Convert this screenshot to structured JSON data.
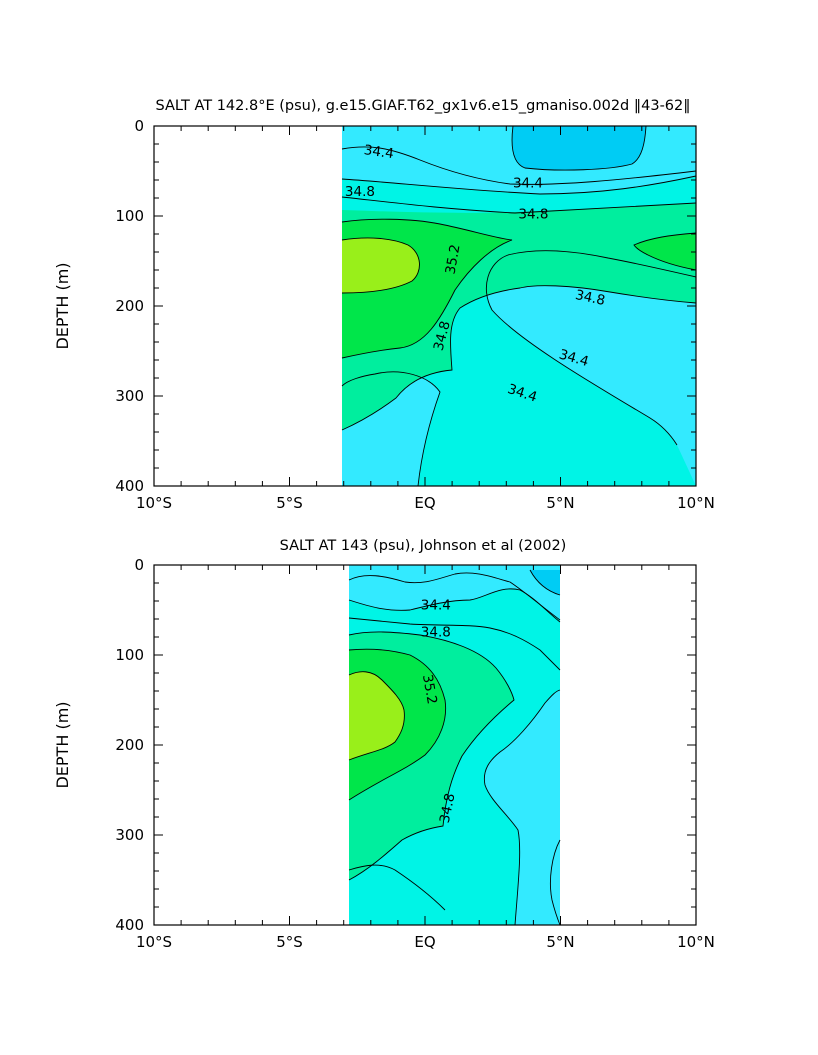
{
  "chart_data": [
    {
      "type": "heatmap",
      "subtype": "filled-contour",
      "title": "SALT AT 142.8°E (psu), g.e15.GIAF.T62_gx1v6.e15_gmaniso.002d ‖43-62‖",
      "ylabel": "DEPTH (m)",
      "xlabel": "",
      "x_tick_labels": [
        "10°S",
        "5°S",
        "EQ",
        "5°N",
        "10°N"
      ],
      "x_ticks": [
        -10,
        -5,
        0,
        5,
        10
      ],
      "y_tick_labels": [
        "0",
        "100",
        "200",
        "300",
        "400"
      ],
      "y_ticks": [
        0,
        100,
        200,
        300,
        400
      ],
      "xlim": [
        -10,
        10
      ],
      "ylim": [
        400,
        0
      ],
      "data_extent_lat": [
        -3,
        10
      ],
      "contour_labels": [
        {
          "text": "34.4",
          "lat": -1.7,
          "depth": 28,
          "rotate": 8
        },
        {
          "text": "34.4",
          "lat": 3.8,
          "depth": 63,
          "rotate": 0
        },
        {
          "text": "34.8",
          "lat": -2.4,
          "depth": 72,
          "rotate": 0
        },
        {
          "text": "34.8",
          "lat": 4.0,
          "depth": 97,
          "rotate": 0
        },
        {
          "text": "35.2",
          "lat": 1.0,
          "depth": 148,
          "rotate": -80
        },
        {
          "text": "34.8",
          "lat": 6.1,
          "depth": 190,
          "rotate": 12
        },
        {
          "text": "34.8",
          "lat": 0.6,
          "depth": 233,
          "rotate": -75
        },
        {
          "text": "34.4",
          "lat": 5.5,
          "depth": 257,
          "rotate": 16
        },
        {
          "text": "34.4",
          "lat": 3.6,
          "depth": 296,
          "rotate": 18
        }
      ],
      "colors": {
        "lowest": "#00ccf4",
        "low": "#33eaff",
        "mid_low": "#00f4e6",
        "mid": "#00ee9e",
        "high": "#00e64a",
        "highest": "#99ef1a"
      }
    },
    {
      "type": "heatmap",
      "subtype": "filled-contour",
      "title": "SALT AT 143 (psu), Johnson et al (2002)",
      "ylabel": "DEPTH (m)",
      "xlabel": "",
      "x_tick_labels": [
        "10°S",
        "5°S",
        "EQ",
        "5°N",
        "10°N"
      ],
      "x_ticks": [
        -10,
        -5,
        0,
        5,
        10
      ],
      "y_tick_labels": [
        "0",
        "100",
        "200",
        "300",
        "400"
      ],
      "y_ticks": [
        0,
        100,
        200,
        300,
        400
      ],
      "xlim": [
        -10,
        10
      ],
      "ylim": [
        400,
        0
      ],
      "data_extent_lat": [
        -2.75,
        5
      ],
      "contour_labels": [
        {
          "text": "34.4",
          "lat": 0.4,
          "depth": 44,
          "rotate": 0
        },
        {
          "text": "34.8",
          "lat": 0.4,
          "depth": 74,
          "rotate": 0
        },
        {
          "text": "35.2",
          "lat": 0.2,
          "depth": 138,
          "rotate": 80
        },
        {
          "text": "34.8",
          "lat": 0.8,
          "depth": 270,
          "rotate": -78
        }
      ],
      "colors": {
        "lowest": "#00ccf4",
        "low": "#33eaff",
        "mid_low": "#00f4e6",
        "mid": "#00ee9e",
        "high": "#00e64a",
        "highest": "#99ef1a"
      }
    }
  ]
}
